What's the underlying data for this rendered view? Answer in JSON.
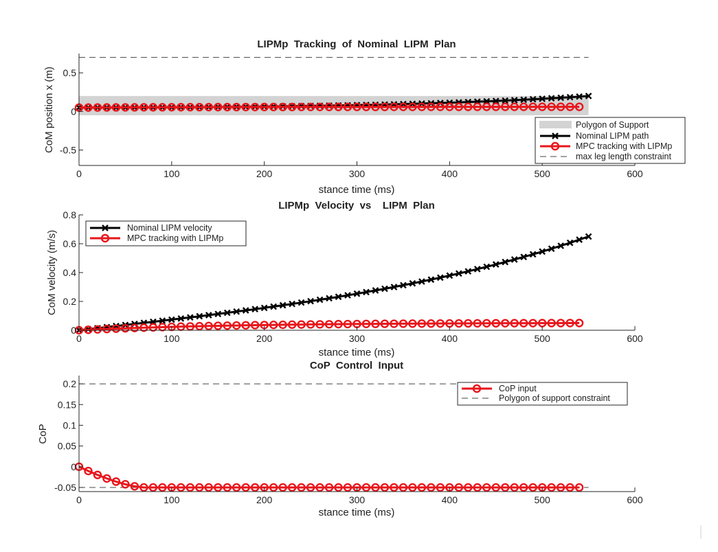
{
  "figure": {
    "background": "#ffffff"
  },
  "chart_data": [
    {
      "type": "line",
      "title": "LIPMp  Tracking  of  Nominal  LIPM  Plan",
      "xlabel": "stance time (ms)",
      "ylabel": "CoM position x (m)",
      "xlim": [
        0,
        600
      ],
      "ylim": [
        -0.7,
        0.75
      ],
      "xticks": [
        0,
        100,
        200,
        300,
        400,
        500,
        600
      ],
      "xtick_labels": [
        "0",
        "100",
        "200",
        "300",
        "400",
        "500",
        "600"
      ],
      "yticks": [
        -0.5,
        0,
        0.5
      ],
      "ytick_labels": [
        "-0.5",
        "0",
        "0.5"
      ],
      "legend_position": "bottom-right",
      "legend": [
        {
          "label": "Polygon of Support",
          "style": "patch",
          "color": "#d3d3d3"
        },
        {
          "label": "Nominal LIPM path",
          "style": "line-x",
          "color": "#000000"
        },
        {
          "label": "MPC tracking with LIPMp",
          "style": "line-o",
          "color": "#e8161b"
        },
        {
          "label": "max leg length constraint",
          "style": "dash",
          "color": "#444444"
        }
      ],
      "bands": [
        {
          "name": "Polygon of Support",
          "x": [
            0,
            550
          ],
          "y": [
            -0.05,
            0.2
          ],
          "color": "#d3d3d3"
        }
      ],
      "hlines": [
        {
          "name": "max leg length constraint",
          "y": 0.7,
          "x": [
            0,
            550
          ]
        },
        {
          "name": "max leg length constraint",
          "y": -0.7,
          "x": [
            0,
            550
          ]
        }
      ],
      "series": [
        {
          "name": "Nominal LIPM path",
          "marker": "x",
          "color": "#000000",
          "kind": "cosh",
          "x_start": 0,
          "x_end": 550,
          "x_step": 10,
          "y_start": 0.05,
          "y_end": 0.2
        },
        {
          "name": "MPC tracking with LIPMp",
          "marker": "o",
          "color": "#e8161b",
          "kind": "rise",
          "x_start": 0,
          "x_end": 540,
          "x_step": 10,
          "y_start": 0.05,
          "y_end": 0.06
        }
      ]
    },
    {
      "type": "line",
      "title": "LIPMp  Velocity  vs    LIPM  Plan",
      "xlabel": "stance time (ms)",
      "ylabel": "CoM velocity (m/s)",
      "xlim": [
        0,
        600
      ],
      "ylim": [
        0,
        0.8
      ],
      "xticks": [
        0,
        100,
        200,
        300,
        400,
        500,
        600
      ],
      "xtick_labels": [
        "0",
        "100",
        "200",
        "300",
        "400",
        "500",
        "600"
      ],
      "yticks": [
        0,
        0.2,
        0.4,
        0.6,
        0.8
      ],
      "ytick_labels": [
        "0",
        "0.2",
        "0.4",
        "0.6",
        "0.8"
      ],
      "legend_position": "top-left",
      "legend": [
        {
          "label": "Nominal LIPM velocity",
          "style": "line-x",
          "color": "#000000"
        },
        {
          "label": "MPC tracking with LIPMp",
          "style": "line-o",
          "color": "#e8161b"
        }
      ],
      "bands": [],
      "hlines": [],
      "series": [
        {
          "name": "Nominal LIPM velocity",
          "marker": "x",
          "color": "#000000",
          "kind": "sinh",
          "x_start": 0,
          "x_end": 550,
          "x_step": 10,
          "y_start": 0,
          "y_end": 0.65
        },
        {
          "name": "MPC tracking with LIPMp",
          "marker": "o",
          "color": "#e8161b",
          "kind": "rise",
          "x_start": 0,
          "x_end": 540,
          "x_step": 10,
          "y_start": 0,
          "y_end": 0.05
        }
      ]
    },
    {
      "type": "line",
      "title": "CoP  Control  Input",
      "xlabel": "stance time (ms)",
      "ylabel": "CoP",
      "xlim": [
        0,
        600
      ],
      "ylim": [
        -0.06,
        0.22
      ],
      "xticks": [
        0,
        100,
        200,
        300,
        400,
        500,
        600
      ],
      "xtick_labels": [
        "0",
        "100",
        "200",
        "300",
        "400",
        "500",
        "600"
      ],
      "yticks": [
        -0.05,
        0,
        0.05,
        0.1,
        0.15,
        0.2
      ],
      "ytick_labels": [
        "-0.05",
        "0",
        "0.05",
        "0.1",
        "0.15",
        "0.2"
      ],
      "legend_position": "top-right",
      "legend": [
        {
          "label": "CoP input",
          "style": "line-o",
          "color": "#e8161b"
        },
        {
          "label": "Polygon of support constraint",
          "style": "dash",
          "color": "#444444"
        }
      ],
      "bands": [],
      "hlines": [
        {
          "name": "Polygon of support constraint",
          "y": 0.2,
          "x": [
            0,
            550
          ]
        },
        {
          "name": "Polygon of support constraint",
          "y": -0.05,
          "x": [
            0,
            550
          ]
        }
      ],
      "series": [
        {
          "name": "CoP input",
          "marker": "o",
          "color": "#e8161b",
          "kind": "drop",
          "x_start": 0,
          "x_end": 540,
          "x_step": 10,
          "y_start": 0,
          "y_end": -0.05,
          "x_settle": 70
        }
      ]
    }
  ]
}
